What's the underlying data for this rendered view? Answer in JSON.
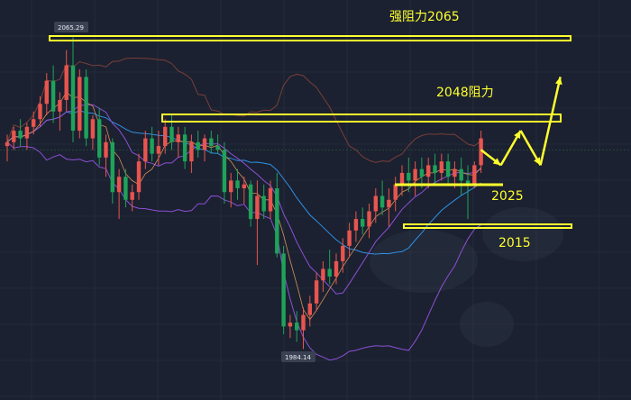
{
  "chart_data": {
    "type": "candlestick",
    "price_tags": {
      "high": "2065.29",
      "low": "1984.14"
    },
    "annotations": {
      "strong_resistance": "强阻力2065",
      "resistance": "2048阻力",
      "support_upper": "2025",
      "support_lower": "2015"
    },
    "levels": {
      "strong_resistance": 2065,
      "resistance": 2048,
      "support_upper": 2025,
      "support_lower": 2015
    },
    "ylim": [
      1980,
      2068
    ],
    "grid": true,
    "candles": [
      [
        2037,
        2040,
        2033,
        2038
      ],
      [
        2038,
        2042,
        2036,
        2041
      ],
      [
        2041,
        2044,
        2037,
        2039
      ],
      [
        2039,
        2043,
        2036,
        2042
      ],
      [
        2042,
        2046,
        2040,
        2044
      ],
      [
        2044,
        2050,
        2042,
        2048
      ],
      [
        2048,
        2056,
        2045,
        2054
      ],
      [
        2054,
        2058,
        2043,
        2046
      ],
      [
        2046,
        2051,
        2041,
        2049
      ],
      [
        2049,
        2062,
        2046,
        2058
      ],
      [
        2058,
        2065.29,
        2038,
        2041
      ],
      [
        2041,
        2057,
        2039,
        2055
      ],
      [
        2055,
        2057,
        2037,
        2039
      ],
      [
        2039,
        2045,
        2036,
        2044
      ],
      [
        2044,
        2047,
        2032,
        2034
      ],
      [
        2034,
        2040,
        2029,
        2038
      ],
      [
        2038,
        2039,
        2022,
        2025
      ],
      [
        2025,
        2031,
        2018,
        2029
      ],
      [
        2029,
        2031,
        2021,
        2023
      ],
      [
        2023,
        2027,
        2020,
        2025
      ],
      [
        2025,
        2035,
        2023,
        2033
      ],
      [
        2033,
        2041,
        2031,
        2039
      ],
      [
        2039,
        2042,
        2033,
        2035
      ],
      [
        2035,
        2041,
        2032,
        2037
      ],
      [
        2037,
        2044,
        2035,
        2042
      ],
      [
        2042,
        2045,
        2036,
        2038
      ],
      [
        2038,
        2042,
        2034,
        2040
      ],
      [
        2040,
        2042,
        2031,
        2033
      ],
      [
        2033,
        2040,
        2030,
        2038
      ],
      [
        2038,
        2041,
        2034,
        2036
      ],
      [
        2036,
        2040,
        2033,
        2039
      ],
      [
        2039,
        2041,
        2035,
        2037
      ],
      [
        2037,
        2040,
        2035,
        2036
      ],
      [
        2036,
        2038,
        2022,
        2025
      ],
      [
        2025,
        2030,
        2021,
        2028
      ],
      [
        2028,
        2031,
        2023,
        2026
      ],
      [
        2026,
        2029,
        2022,
        2027
      ],
      [
        2027,
        2028,
        2016,
        2018
      ],
      [
        2018,
        2028,
        2006,
        2024
      ],
      [
        2024,
        2027,
        2018,
        2020
      ],
      [
        2020,
        2028,
        2018,
        2026
      ],
      [
        2026,
        2030,
        2008,
        2009
      ],
      [
        2009,
        2011,
        1988,
        1990
      ],
      [
        1990,
        1993,
        1987,
        1991
      ],
      [
        1991,
        1994,
        1986,
        1989
      ],
      [
        1989,
        1995,
        1984.14,
        1993
      ],
      [
        1993,
        1998,
        1990,
        1996
      ],
      [
        1996,
        2004,
        1994,
        2002
      ],
      [
        2002,
        2007,
        1999,
        2005
      ],
      [
        2005,
        2010,
        2001,
        2003
      ],
      [
        2003,
        2009,
        2001,
        2007
      ],
      [
        2007,
        2013,
        2004,
        2011
      ],
      [
        2011,
        2017,
        2008,
        2015
      ],
      [
        2015,
        2020,
        2012,
        2018
      ],
      [
        2018,
        2021,
        2014,
        2016
      ],
      [
        2016,
        2022,
        2013,
        2020
      ],
      [
        2020,
        2026,
        2017,
        2024
      ],
      [
        2024,
        2028,
        2019,
        2021
      ],
      [
        2021,
        2026,
        2016,
        2023
      ],
      [
        2023,
        2029,
        2020,
        2027
      ],
      [
        2027,
        2032,
        2024,
        2030
      ],
      [
        2030,
        2034,
        2025,
        2028
      ],
      [
        2028,
        2033,
        2024,
        2031
      ],
      [
        2031,
        2034,
        2026,
        2029
      ],
      [
        2029,
        2034,
        2026,
        2032
      ],
      [
        2032,
        2035,
        2027,
        2030
      ],
      [
        2030,
        2035,
        2028,
        2033
      ],
      [
        2033,
        2035,
        2027,
        2029
      ],
      [
        2029,
        2033,
        2026,
        2031
      ],
      [
        2031,
        2034,
        2024,
        2028
      ],
      [
        2028,
        2032,
        2018,
        2027
      ],
      [
        2027,
        2033,
        2026,
        2032
      ],
      [
        2032,
        2041,
        2030,
        2039
      ]
    ],
    "projected_path": [
      [
        72,
        2036
      ],
      [
        73,
        2032
      ],
      [
        74,
        2041
      ],
      [
        75,
        2032
      ],
      [
        76,
        2055
      ]
    ]
  },
  "colors": {
    "background": "#1b2130",
    "bull": "#e8554e",
    "bear": "#1fa25a",
    "annotation": "#ffff2e",
    "bb_outer": "#7a3e39",
    "bb_mid": "#8e4fd6",
    "bb_lower": "#8e4fd6",
    "ma_short": "#2f8fe4",
    "ma_fast": "#d88f58",
    "grid": "#2b3243"
  }
}
